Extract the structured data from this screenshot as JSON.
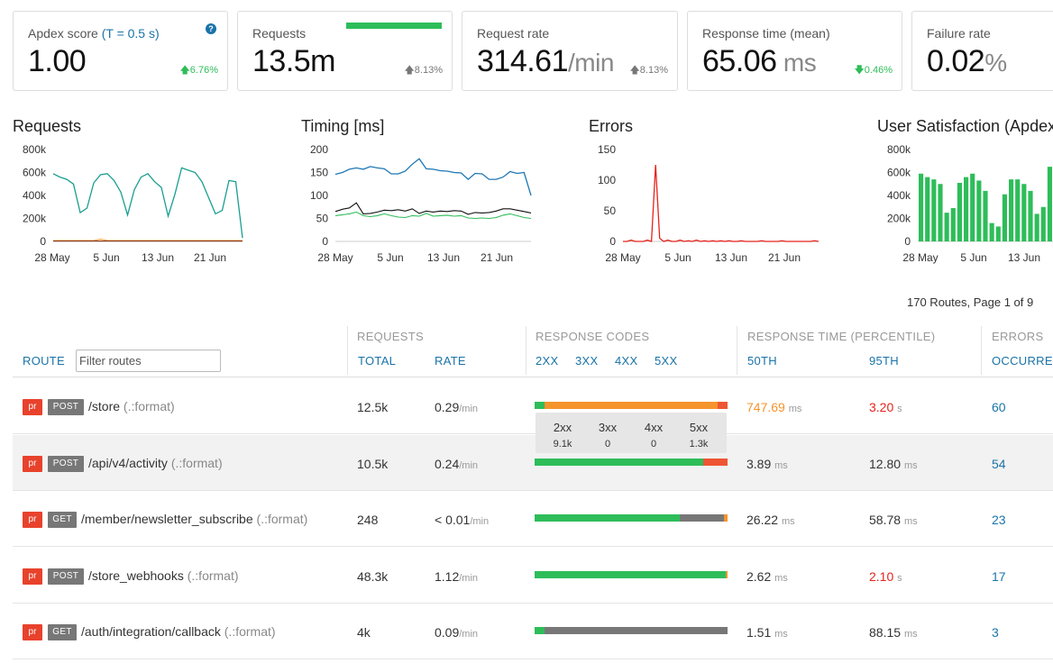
{
  "kpis": {
    "apdex": {
      "label": "Apdex score",
      "t_label": "(T = 0.5 s)",
      "value": "1.00",
      "delta": "6.76%"
    },
    "requests": {
      "label": "Requests",
      "value": "13.5m",
      "delta": "8.13%"
    },
    "request_rate": {
      "label": "Request rate",
      "value": "314.61",
      "unit": "/min",
      "delta": "8.13%"
    },
    "response_time": {
      "label": "Response time (mean)",
      "value": "65.06",
      "unit": " ms",
      "delta": "0.46%"
    },
    "failure_rate": {
      "label": "Failure rate",
      "value": "0.02",
      "unit": "%"
    }
  },
  "chart_data": [
    {
      "type": "line",
      "title": "Requests",
      "x_ticks": [
        "28 May",
        "5 Jun",
        "13 Jun",
        "21 Jun"
      ],
      "y_ticks": [
        "800k",
        "600k",
        "400k",
        "200k",
        "0"
      ],
      "ylim": [
        0,
        800000
      ],
      "series": [
        {
          "color": "#1a9e8f",
          "values": [
            590000,
            560000,
            540000,
            500000,
            250000,
            290000,
            510000,
            580000,
            590000,
            530000,
            430000,
            230000,
            450000,
            560000,
            590000,
            520000,
            470000,
            220000,
            410000,
            640000,
            620000,
            600000,
            520000,
            380000,
            240000,
            270000,
            530000,
            520000,
            30000
          ]
        },
        {
          "color": "#f5932c",
          "values": [
            8000,
            8000,
            8000,
            8000,
            8000,
            8000,
            8000,
            20000,
            8000,
            8000,
            8000,
            8000,
            8000,
            8000,
            8000,
            8000,
            8000,
            8000,
            8000,
            8000,
            8000,
            8000,
            8000,
            8000,
            8000,
            8000,
            8000,
            8000,
            8000
          ]
        },
        {
          "color": "#8a3a1a",
          "values": [
            3000,
            3000,
            3000,
            3000,
            3000,
            3000,
            3000,
            3000,
            3000,
            3000,
            3000,
            3000,
            3000,
            3000,
            3000,
            3000,
            3000,
            3000,
            3000,
            3000,
            3000,
            3000,
            3000,
            3000,
            3000,
            3000,
            3000,
            3000,
            3000
          ]
        }
      ]
    },
    {
      "type": "line",
      "title": "Timing [ms]",
      "x_ticks": [
        "28 May",
        "5 Jun",
        "13 Jun",
        "21 Jun"
      ],
      "y_ticks": [
        "200",
        "150",
        "100",
        "50",
        "0"
      ],
      "ylim": [
        0,
        200
      ],
      "series": [
        {
          "color": "#1f78b4",
          "values": [
            146,
            150,
            157,
            160,
            157,
            163,
            160,
            158,
            147,
            147,
            153,
            168,
            180,
            158,
            157,
            154,
            153,
            150,
            149,
            135,
            148,
            147,
            135,
            135,
            140,
            152,
            148,
            150,
            100
          ]
        },
        {
          "color": "#111111",
          "values": [
            65,
            70,
            73,
            84,
            60,
            61,
            64,
            68,
            67,
            69,
            66,
            71,
            61,
            66,
            64,
            66,
            65,
            67,
            66,
            59,
            63,
            62,
            63,
            66,
            71,
            71,
            68,
            65,
            62
          ]
        },
        {
          "color": "#2ebd59",
          "values": [
            56,
            58,
            60,
            64,
            56,
            54,
            56,
            60,
            56,
            53,
            52,
            56,
            55,
            61,
            55,
            56,
            57,
            55,
            56,
            51,
            50,
            51,
            50,
            52,
            57,
            60,
            56,
            52,
            50
          ]
        }
      ]
    },
    {
      "type": "line",
      "title": "Errors",
      "x_ticks": [
        "28 May",
        "5 Jun",
        "13 Jun",
        "21 Jun"
      ],
      "y_ticks": [
        "150",
        "100",
        "50",
        "0"
      ],
      "ylim": [
        0,
        150
      ],
      "series": [
        {
          "color": "#e5231c",
          "values": [
            0,
            0,
            2,
            0,
            0,
            0,
            2,
            0,
            125,
            5,
            0,
            2,
            0,
            0,
            2,
            0,
            1,
            0,
            2,
            0,
            1,
            0,
            1,
            0,
            1,
            0,
            1,
            0,
            0,
            1,
            0,
            0,
            0,
            0,
            1,
            0,
            0,
            0,
            0,
            1,
            0,
            0,
            0,
            0,
            0,
            0,
            0,
            1,
            0
          ]
        }
      ]
    },
    {
      "type": "bar",
      "title": "User Satisfaction (Apdex)",
      "x_ticks": [
        "28 May",
        "5 Jun",
        "13 Jun"
      ],
      "y_ticks": [
        "800k",
        "600k",
        "400k",
        "200k",
        "0"
      ],
      "ylim": [
        0,
        800000
      ],
      "series": [
        {
          "color": "#2ebd59",
          "values": [
            590000,
            560000,
            540000,
            500000,
            250000,
            290000,
            510000,
            560000,
            590000,
            530000,
            440000,
            160000,
            130000,
            410000,
            540000,
            540000,
            500000,
            440000,
            240000,
            300000,
            650000
          ]
        }
      ]
    }
  ],
  "pager": {
    "text": "170 Routes, Page 1 of 9"
  },
  "table": {
    "group_headers": {
      "requests": "REQUESTS",
      "response_codes": "RESPONSE CODES",
      "response_time": "RESPONSE TIME (PERCENTILE)",
      "errors": "ERRORS"
    },
    "columns": {
      "route": "ROUTE",
      "total": "TOTAL",
      "rate": "RATE",
      "c2xx": "2XX",
      "c3xx": "3XX",
      "c4xx": "4XX",
      "c5xx": "5XX",
      "p50": "50TH",
      "p95": "95TH",
      "occurrences": "OCCURRE"
    },
    "filter_placeholder": "Filter routes",
    "rows": [
      {
        "pr": "pr",
        "method": "POST",
        "path": "/store",
        "fmt": " (.:format)",
        "total": "12.5k",
        "rate": "0.29",
        "rate_unit": "/min",
        "codes": {
          "2xx": 0.05,
          "3xx": 0,
          "4xx": 0.9,
          "5xx": 0.05
        },
        "p50": "747.69",
        "p50_unit": "ms",
        "p95": "3.20",
        "p95_unit": "s",
        "occurrences": "60"
      },
      {
        "pr": "pr",
        "method": "POST",
        "path": "/api/v4/activity",
        "fmt": " (.:format)",
        "total": "10.5k",
        "rate": "0.24",
        "rate_unit": "/min",
        "codes": {
          "2xx": 0.875,
          "3xx": 0,
          "4xx": 0,
          "5xx": 0.125
        },
        "p50": "3.89",
        "p50_unit": "ms",
        "p95": "12.80",
        "p95_unit": "ms",
        "occurrences": "54"
      },
      {
        "pr": "pr",
        "method": "GET",
        "path": "/member/newsletter_subscribe",
        "fmt": " (.:format)",
        "total": "248",
        "rate": "< 0.01",
        "rate_unit": "/min",
        "codes": {
          "2xx": 0.75,
          "3xx": 0.23,
          "4xx": 0.02,
          "5xx": 0
        },
        "p50": "26.22",
        "p50_unit": "ms",
        "p95": "58.78",
        "p95_unit": "ms",
        "occurrences": "23"
      },
      {
        "pr": "pr",
        "method": "POST",
        "path": "/store_webhooks",
        "fmt": " (.:format)",
        "total": "48.3k",
        "rate": "1.12",
        "rate_unit": "/min",
        "codes": {
          "2xx": 0.99,
          "3xx": 0,
          "4xx": 0.01,
          "5xx": 0
        },
        "p50": "2.62",
        "p50_unit": "ms",
        "p95": "2.10",
        "p95_unit": "s",
        "occurrences": "17"
      },
      {
        "pr": "pr",
        "method": "GET",
        "path": "/auth/integration/callback",
        "fmt": " (.:format)",
        "total": "4k",
        "rate": "0.09",
        "rate_unit": "/min",
        "codes": {
          "2xx": 0.05,
          "3xx": 0.95,
          "4xx": 0,
          "5xx": 0
        },
        "p50": "1.51",
        "p50_unit": "ms",
        "p95": "88.15",
        "p95_unit": "ms",
        "occurrences": "3"
      }
    ],
    "tooltip": {
      "headers": [
        "2xx",
        "3xx",
        "4xx",
        "5xx"
      ],
      "values": [
        "9.1k",
        "0",
        "0",
        "1.3k"
      ]
    }
  },
  "colors": {
    "accent": "#1a73a8",
    "green": "#2ebd59",
    "orange": "#f5932c",
    "red": "#e5231c",
    "gray": "#777777"
  }
}
